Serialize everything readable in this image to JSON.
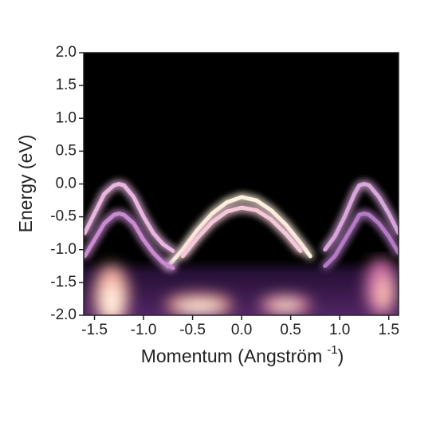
{
  "chart_data": {
    "type": "line",
    "xlabel": {
      "text": "Momentum (Angström",
      "superscript": "-1",
      "suffix": ")"
    },
    "ylabel": "Energy (eV)",
    "xlim": [
      -1.61,
      1.6
    ],
    "ylim": [
      -2,
      2
    ],
    "xticks": [
      -1.5,
      {
        "value": -1,
        "label": "-1.0"
      },
      -0.5,
      {
        "value": 0,
        "label": "0.0"
      },
      0.5,
      {
        "value": 1,
        "label": "1.0"
      },
      1.5
    ],
    "yticks": [
      {
        "value": 2,
        "label": "2.0"
      },
      1.5,
      {
        "value": 1,
        "label": "1.0"
      },
      0.5,
      {
        "value": 0,
        "label": "0.0"
      },
      -0.5,
      {
        "value": -1,
        "label": "-1.0"
      },
      -1.5,
      {
        "value": -2,
        "label": "-2.0"
      }
    ],
    "background": "#000000",
    "series": [
      {
        "color": "#fff2df",
        "x": [
          -0.75,
          -0.6,
          -0.45,
          -0.3,
          -0.15,
          0,
          0.15,
          0.3,
          0.45,
          0.6,
          0.7
        ],
        "values": [
          -1.25,
          -1.0,
          -0.7,
          -0.45,
          -0.28,
          -0.2,
          -0.25,
          -0.4,
          -0.62,
          -0.9,
          -1.1
        ]
      },
      {
        "color": "#f4c8d8",
        "x": [
          -0.6,
          -0.45,
          -0.3,
          -0.15,
          0,
          0.15,
          0.3,
          0.45,
          0.6
        ],
        "values": [
          -1.1,
          -0.82,
          -0.58,
          -0.42,
          -0.36,
          -0.4,
          -0.54,
          -0.76,
          -1.02
        ]
      },
      {
        "color": "#e9b6e0",
        "x": [
          -1.6,
          -1.5,
          -1.4,
          -1.3,
          -1.25,
          -1.2,
          -1.1,
          -1.0,
          -0.9,
          -0.8,
          -0.7
        ],
        "values": [
          -0.75,
          -0.45,
          -0.15,
          -0.02,
          0,
          -0.02,
          -0.2,
          -0.5,
          -0.75,
          -0.92,
          -1.02
        ]
      },
      {
        "color": "#c98ad0",
        "x": [
          -1.6,
          -1.5,
          -1.4,
          -1.3,
          -1.25,
          -1.2,
          -1.1,
          -1.0,
          -0.9,
          -0.8,
          -0.7
        ],
        "values": [
          -1.1,
          -0.85,
          -0.6,
          -0.47,
          -0.45,
          -0.47,
          -0.6,
          -0.85,
          -1.05,
          -1.2,
          -1.28
        ]
      },
      {
        "color": "#d9a6dc",
        "x": [
          0.85,
          0.95,
          1.05,
          1.15,
          1.2,
          1.25,
          1.3,
          1.4,
          1.5,
          1.6
        ],
        "values": [
          -1.0,
          -0.8,
          -0.5,
          -0.15,
          -0.02,
          0,
          -0.02,
          -0.2,
          -0.45,
          -0.75
        ]
      },
      {
        "color": "#b47ac4",
        "x": [
          0.85,
          0.95,
          1.05,
          1.15,
          1.2,
          1.25,
          1.3,
          1.4,
          1.5,
          1.6
        ],
        "values": [
          -1.25,
          -1.1,
          -0.85,
          -0.6,
          -0.47,
          -0.45,
          -0.47,
          -0.6,
          -0.8,
          -1.05
        ]
      }
    ]
  }
}
